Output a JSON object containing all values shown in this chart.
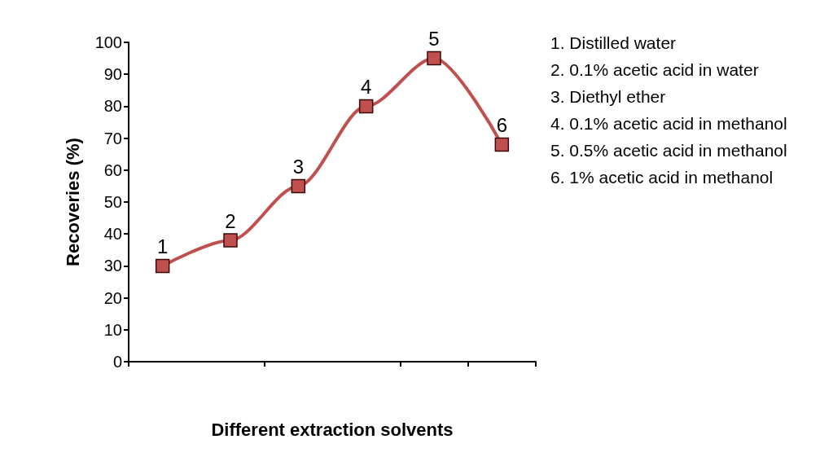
{
  "chart_data": {
    "type": "line",
    "xlabel": "Different extraction solvents",
    "ylabel": "Recoveries (%)",
    "categories": [
      null,
      null,
      null,
      null,
      null,
      null
    ],
    "series": [
      {
        "color": "#c0504d",
        "values": [
          30,
          38,
          55,
          80,
          95,
          68
        ]
      }
    ],
    "ylim": [
      0,
      100
    ],
    "yticks": [
      0,
      10,
      20,
      30,
      40,
      50,
      60,
      70,
      80,
      90,
      100
    ],
    "grid": false,
    "marker": "square",
    "line_style": "solid",
    "annotations": [
      {
        "text": "1",
        "y": 30
      },
      {
        "text": "2",
        "y": 38
      },
      {
        "text": "3",
        "y": 55
      },
      {
        "text": "4",
        "y": 80
      },
      {
        "text": "5",
        "y": 95
      },
      {
        "text": "6",
        "y": 68
      },
      "1. Distilled water",
      "2. 0.1% acetic acid in water",
      "3. Diethyl ether",
      "4. 0.1% acetic acid in methanol",
      "5. 0.5% acetic acid in methanol",
      "6. 1% acetic acid in methanol"
    ]
  }
}
